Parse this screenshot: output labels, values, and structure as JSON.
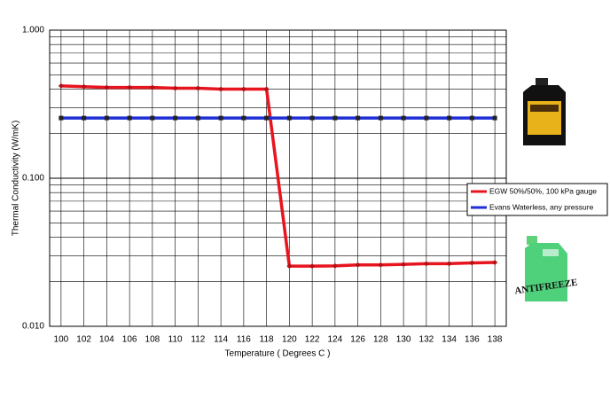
{
  "chart_data": {
    "type": "line",
    "y_label": "Thermal Conductivity  (W/mK)",
    "x_label": "Temperature ( Degrees  C )",
    "x": [
      100,
      102,
      104,
      106,
      108,
      110,
      112,
      114,
      116,
      118,
      120,
      122,
      124,
      126,
      128,
      130,
      132,
      134,
      136,
      138
    ],
    "series": [
      {
        "name": "EGW 50%/50%,  100 kPa gauge",
        "color": "#e8141e",
        "values": [
          0.42,
          0.415,
          0.41,
          0.41,
          0.41,
          0.405,
          0.405,
          0.4,
          0.4,
          0.4,
          0.0255,
          0.0255,
          0.0256,
          0.026,
          0.026,
          0.0262,
          0.0265,
          0.0265,
          0.0268,
          0.027
        ]
      },
      {
        "name": "Evans Waterless, any pressure",
        "color": "#1f2fd6",
        "values": [
          0.255,
          0.255,
          0.255,
          0.255,
          0.255,
          0.255,
          0.255,
          0.255,
          0.255,
          0.255,
          0.255,
          0.255,
          0.255,
          0.255,
          0.255,
          0.255,
          0.255,
          0.255,
          0.255,
          0.255
        ]
      }
    ],
    "xlim": [
      99,
      139
    ],
    "xticks": [
      100,
      102,
      104,
      106,
      108,
      110,
      112,
      114,
      116,
      118,
      120,
      122,
      124,
      126,
      128,
      130,
      132,
      134,
      136,
      138
    ],
    "ylim": [
      0.01,
      1.0
    ],
    "y_log": true,
    "yticks": [
      {
        "value": 0.01,
        "label": "0.010"
      },
      {
        "value": 0.1,
        "label": "0.100"
      },
      {
        "value": 1.0,
        "label": "1.000"
      }
    ],
    "y_minor_ticks": [
      0.02,
      0.03,
      0.04,
      0.05,
      0.06,
      0.07,
      0.08,
      0.09,
      0.2,
      0.3,
      0.4,
      0.5,
      0.6,
      0.7,
      0.8,
      0.9
    ],
    "grid": true,
    "legend": "right",
    "annotations": [
      "ANTIFREEZE"
    ]
  }
}
